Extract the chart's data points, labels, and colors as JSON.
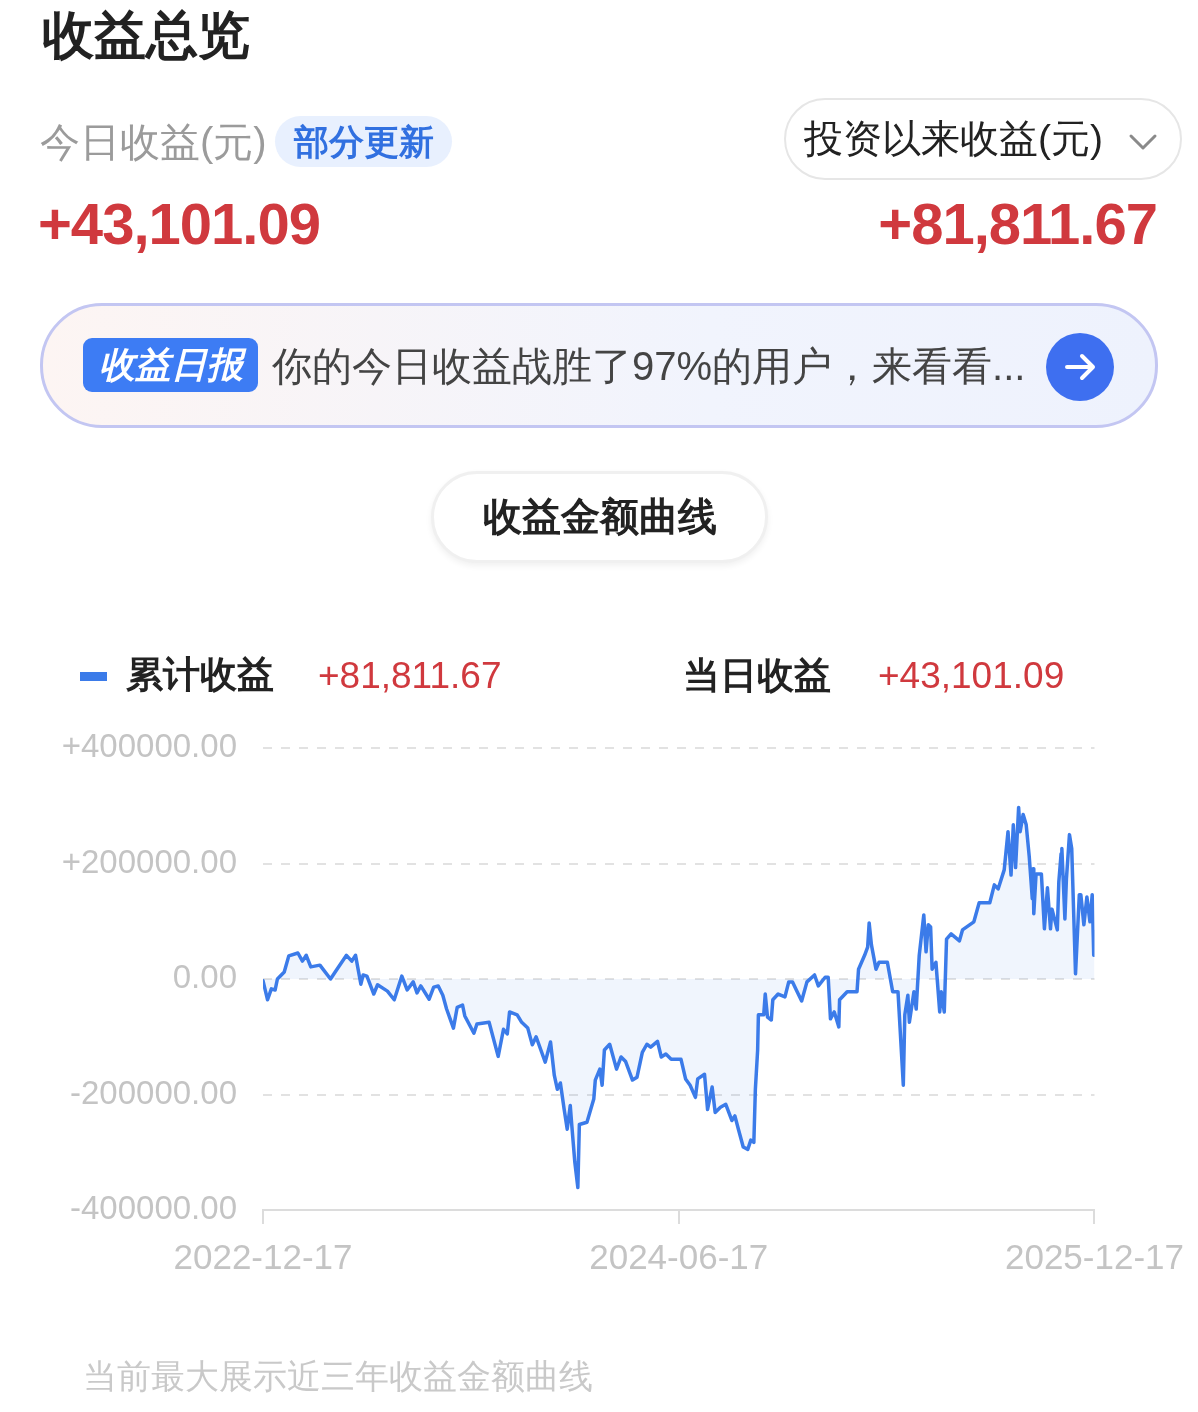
{
  "chart_data": {
    "type": "area",
    "title": "收益总览",
    "subtitle": "收益金额曲线",
    "annotations": [
      "今日收益(元)",
      "部分更新",
      "投资以来收益(元)",
      "+43,101.09",
      "+81,811.67",
      "收益日报",
      "你的今日收益战胜了97%的用户，来看看...",
      "+81,811.67",
      "当日收益",
      "+43,101.09",
      "当前最大展示近三年收益金额曲线"
    ],
    "x": [
      "2022-12-17",
      "2022-12-23",
      "2022-12-28",
      "2023-01-02",
      "2023-01-05",
      "2023-01-14",
      "2023-01-20",
      "2023-02-01",
      "2023-02-07",
      "2023-02-12",
      "2023-02-18",
      "2023-03-02",
      "2023-03-16",
      "2023-03-23",
      "2023-04-06",
      "2023-04-13",
      "2023-04-18",
      "2023-04-25",
      "2023-04-28",
      "2023-05-03",
      "2023-05-12",
      "2023-05-17",
      "2023-05-30",
      "2023-06-08",
      "2023-06-18",
      "2023-06-25",
      "2023-07-03",
      "2023-07-08",
      "2023-07-13",
      "2023-07-24",
      "2023-07-30",
      "2023-08-05",
      "2023-08-11",
      "2023-08-16",
      "2023-08-25",
      "2023-08-30",
      "2023-09-06",
      "2023-09-09",
      "2023-09-21",
      "2023-09-25",
      "2023-10-11",
      "2023-10-23",
      "2023-10-30",
      "2023-11-04",
      "2023-11-07",
      "2023-11-17",
      "2023-11-23",
      "2023-12-01",
      "2023-12-07",
      "2023-12-12",
      "2023-12-24",
      "2023-12-31",
      "2024-01-05",
      "2024-01-09",
      "2024-01-13",
      "2024-01-18",
      "2024-01-22",
      "2024-01-26",
      "2024-01-28",
      "2024-02-01",
      "2024-02-05",
      "2024-02-07",
      "2024-02-17",
      "2024-02-26",
      "2024-02-28",
      "2024-03-05",
      "2024-03-08",
      "2024-03-11",
      "2024-03-18",
      "2024-03-27",
      "2024-04-02",
      "2024-04-08",
      "2024-04-17",
      "2024-04-23",
      "2024-04-30",
      "2024-05-06",
      "2024-05-11",
      "2024-05-20",
      "2024-05-25",
      "2024-05-31",
      "2024-06-07",
      "2024-06-20",
      "2024-06-26",
      "2024-07-02",
      "2024-07-09",
      "2024-07-12",
      "2024-07-21",
      "2024-07-25",
      "2024-07-31",
      "2024-08-04",
      "2024-08-11",
      "2024-08-18",
      "2024-08-26",
      "2024-08-30",
      "2024-09-04",
      "2024-09-10",
      "2024-09-16",
      "2024-09-20",
      "2024-09-24",
      "2024-09-26",
      "2024-09-29",
      "2024-09-30",
      "2024-10-07",
      "2024-10-09",
      "2024-10-12",
      "2024-10-17",
      "2024-10-19",
      "2024-10-26",
      "2024-11-04",
      "2024-11-09",
      "2024-11-14",
      "2024-11-19",
      "2024-11-26",
      "2024-12-03",
      "2024-12-13",
      "2024-12-18",
      "2024-12-27",
      "2024-12-31",
      "2025-01-03",
      "2025-01-08",
      "2025-01-14",
      "2025-01-15",
      "2025-01-25",
      "2025-02-07",
      "2025-02-09",
      "2025-02-17",
      "2025-02-21",
      "2025-02-23",
      "2025-02-26",
      "2025-03-04",
      "2025-03-08",
      "2025-03-19",
      "2025-03-26",
      "2025-04-02",
      "2025-04-09",
      "2025-04-11",
      "2025-04-15",
      "2025-04-17",
      "2025-04-23",
      "2025-04-26",
      "2025-04-30",
      "2025-05-06",
      "2025-05-09",
      "2025-05-12",
      "2025-05-15",
      "2025-05-17",
      "2025-05-22",
      "2025-05-27",
      "2025-05-29",
      "2025-06-02",
      "2025-06-05",
      "2025-06-11",
      "2025-06-22",
      "2025-06-26",
      "2025-07-11",
      "2025-07-18",
      "2025-08-01",
      "2025-08-07",
      "2025-08-12",
      "2025-08-20",
      "2025-08-25",
      "2025-08-29",
      "2025-09-01",
      "2025-09-04",
      "2025-09-08",
      "2025-09-10",
      "2025-09-14",
      "2025-09-18",
      "2025-09-22",
      "2025-09-26",
      "2025-09-27",
      "2025-09-28",
      "2025-10-01",
      "2025-10-08",
      "2025-10-12",
      "2025-10-16",
      "2025-10-20",
      "2025-10-22",
      "2025-10-29",
      "2025-10-31",
      "2025-11-03",
      "2025-11-04",
      "2025-11-08",
      "2025-11-10",
      "2025-11-14",
      "2025-11-17",
      "2025-11-22",
      "2025-11-27",
      "2025-11-29",
      "2025-12-03",
      "2025-12-07",
      "2025-12-11",
      "2025-12-14",
      "2025-12-16",
      "2025-12-17"
    ],
    "series": [
      {
        "name": "累计收益",
        "color": "#3b7be9",
        "values": [
          -3000,
          -36000,
          -17000,
          -19000,
          0,
          12000,
          40000,
          45000,
          31000,
          41000,
          21000,
          24000,
          0,
          14000,
          41000,
          31000,
          41000,
          -9000,
          7000,
          5000,
          -26000,
          -10000,
          -21000,
          -36000,
          5000,
          -19000,
          -5000,
          -24000,
          -12000,
          -35000,
          -14000,
          -12000,
          -28000,
          -52000,
          -85000,
          -49000,
          -45000,
          -64000,
          -94000,
          -78000,
          -75000,
          -134000,
          -87000,
          -95000,
          -57000,
          -62000,
          -75000,
          -85000,
          -114000,
          -100000,
          -144000,
          -109000,
          -167000,
          -191000,
          -180000,
          -226000,
          -260000,
          -219000,
          -253000,
          -317000,
          -361000,
          -252000,
          -248000,
          -208000,
          -175000,
          -156000,
          -184000,
          -123000,
          -113000,
          -156000,
          -135000,
          -143000,
          -175000,
          -170000,
          -127000,
          -113000,
          -118000,
          -108000,
          -135000,
          -130000,
          -139000,
          -139000,
          -173000,
          -184000,
          -205000,
          -173000,
          -165000,
          -226000,
          -187000,
          -231000,
          -222000,
          -217000,
          -245000,
          -237000,
          -262000,
          -291000,
          -295000,
          -279000,
          -283000,
          -191000,
          -123000,
          -62000,
          -62000,
          -26000,
          -66000,
          -71000,
          -36000,
          -26000,
          -31000,
          -5000,
          -5000,
          -19000,
          -38000,
          -5000,
          7000,
          -12000,
          3000,
          3000,
          -69000,
          -57000,
          -83000,
          -36000,
          -22000,
          -22000,
          17000,
          41000,
          55000,
          97000,
          59000,
          17000,
          29000,
          29000,
          -22000,
          -22000,
          -184000,
          -62000,
          -28000,
          -75000,
          -22000,
          -52000,
          41000,
          111000,
          47000,
          94000,
          90000,
          17000,
          29000,
          -57000,
          -22000,
          -57000,
          69000,
          78000,
          66000,
          85000,
          99000,
          132000,
          132000,
          163000,
          156000,
          189000,
          255000,
          180000,
          267000,
          193000,
          297000,
          255000,
          285000,
          267000,
          212000,
          139000,
          191000,
          113000,
          182000,
          182000,
          87000,
          158000,
          87000,
          121000,
          85000,
          168000,
          217000,
          226000,
          104000,
          173000,
          250000,
          226000,
          9000,
          146000,
          146000,
          94000,
          142000,
          99000,
          146000,
          41000,
          82000
        ]
      }
    ],
    "xlim": [
      "2022-12-17",
      "2025-12-17"
    ],
    "xticks": [
      "2022-12-17",
      "2024-06-17",
      "2025-12-17"
    ],
    "ylim": [
      -400000,
      400000
    ],
    "yticks": [
      {
        "value": -400000,
        "label": "-400000.00"
      },
      {
        "value": -200000,
        "label": "-200000.00"
      },
      {
        "value": 0,
        "label": "0.00"
      },
      {
        "value": 200000,
        "label": "+200000.00"
      },
      {
        "value": 400000,
        "label": "+400000.00"
      }
    ],
    "grid": "y",
    "legend": "top left",
    "marker": "none",
    "line_style": "solid"
  }
}
